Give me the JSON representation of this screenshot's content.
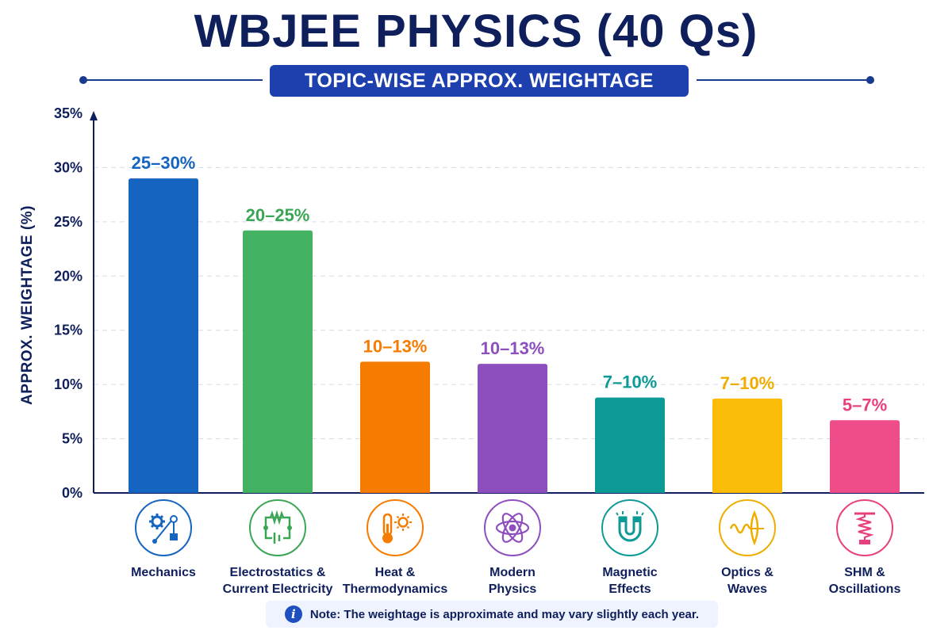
{
  "title": "WBJEE PHYSICS (40 Qs)",
  "subtitle": "TOPIC-WISE APPROX. WEIGHTAGE",
  "note": "Note: The weightage is approximate and may vary slightly each year.",
  "colors": {
    "title": "#0f1f5c",
    "accent": "#1e40af",
    "grid": "#d8dce6"
  },
  "chart_data": {
    "type": "bar",
    "title": "WBJEE PHYSICS (40 Qs)",
    "subtitle": "TOPIC-WISE APPROX. WEIGHTAGE",
    "xlabel": "",
    "ylabel": "APPROX. WEIGHTAGE (%)",
    "ylim": [
      0,
      35
    ],
    "yticks": [
      "0%",
      "5%",
      "10%",
      "15%",
      "20%",
      "25%",
      "30%",
      "35%"
    ],
    "grid": true,
    "legend": "none",
    "categories": [
      "Mechanics",
      "Electrostatics & Current Electricity",
      "Heat & Thermodynamics",
      "Modern Physics",
      "Magnetic Effects",
      "Optics & Waves",
      "SHM & Oscillations"
    ],
    "category_lines": [
      [
        "Mechanics"
      ],
      [
        "Electrostatics &",
        "Current Electricity"
      ],
      [
        "Heat &",
        "Thermodynamics"
      ],
      [
        "Modern",
        "Physics"
      ],
      [
        "Magnetic",
        "Effects"
      ],
      [
        "Optics &",
        "Waves"
      ],
      [
        "SHM &",
        "Oscillations"
      ]
    ],
    "values": [
      29,
      24.2,
      12.1,
      11.9,
      8.8,
      8.7,
      6.7
    ],
    "data_labels": [
      "25–30%",
      "20–25%",
      "10–13%",
      "10–13%",
      "7–10%",
      "7–10%",
      "5–7%"
    ],
    "colors": [
      "#1565c0",
      "#43b262",
      "#f57c00",
      "#8e4fbe",
      "#0d9a96",
      "#fbbd08",
      "#ee4d8a"
    ],
    "label_colors": [
      "#1565c0",
      "#3aa655",
      "#f57c00",
      "#8e4fbe",
      "#0d9a96",
      "#f0ad00",
      "#e8407e"
    ],
    "icons": [
      "gear-pulley-icon",
      "circuit-icon",
      "thermometer-sun-icon",
      "atom-icon",
      "magnet-icon",
      "wave-lens-icon",
      "spring-icon"
    ]
  }
}
